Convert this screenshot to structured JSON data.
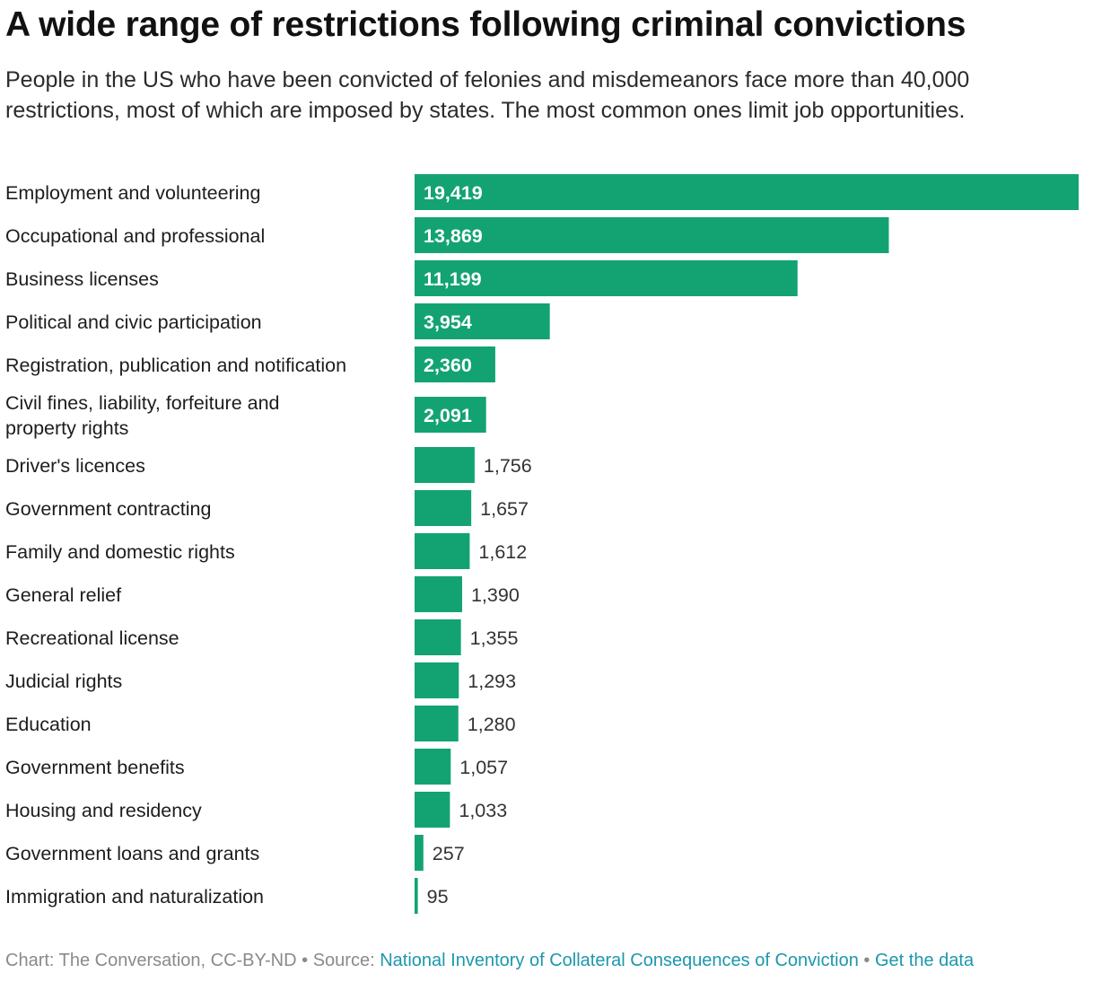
{
  "header": {
    "title": "A wide range of restrictions following criminal convictions",
    "subtitle": "People in the US who have been convicted of felonies and misdemeanors face more than 40,000 restrictions, most of which are imposed by states. The most common ones limit job opportunities."
  },
  "chart_data": {
    "type": "bar",
    "orientation": "horizontal",
    "categories": [
      "Employment and volunteering",
      "Occupational and professional",
      "Business licenses",
      "Political and civic participation",
      "Registration, publication and notification",
      "Civil fines, liability, forfeiture and property rights",
      "Driver's licences",
      "Government contracting",
      "Family and domestic rights",
      "General relief",
      "Recreational license",
      "Judicial rights",
      "Education",
      "Government benefits",
      "Housing and residency",
      "Government loans and grants",
      "Immigration and naturalization"
    ],
    "values": [
      19419,
      13869,
      11199,
      3954,
      2360,
      2091,
      1756,
      1657,
      1612,
      1390,
      1355,
      1293,
      1280,
      1057,
      1033,
      257,
      95
    ],
    "value_labels": [
      "19,419",
      "13,869",
      "11,199",
      "3,954",
      "2,360",
      "2,091",
      "1,756",
      "1,657",
      "1,612",
      "1,390",
      "1,355",
      "1,293",
      "1,280",
      "1,057",
      "1,033",
      "257",
      "95"
    ],
    "xlim": [
      0,
      19419
    ],
    "bar_color": "#13a372",
    "grid": false,
    "legend": "none"
  },
  "footer": {
    "credit": "Chart: The Conversation, CC-BY-ND",
    "separator": "•",
    "source_prefix": "Source:",
    "source_link": "National Inventory of Collateral Consequences of Conviction",
    "data_link": "Get the data"
  }
}
